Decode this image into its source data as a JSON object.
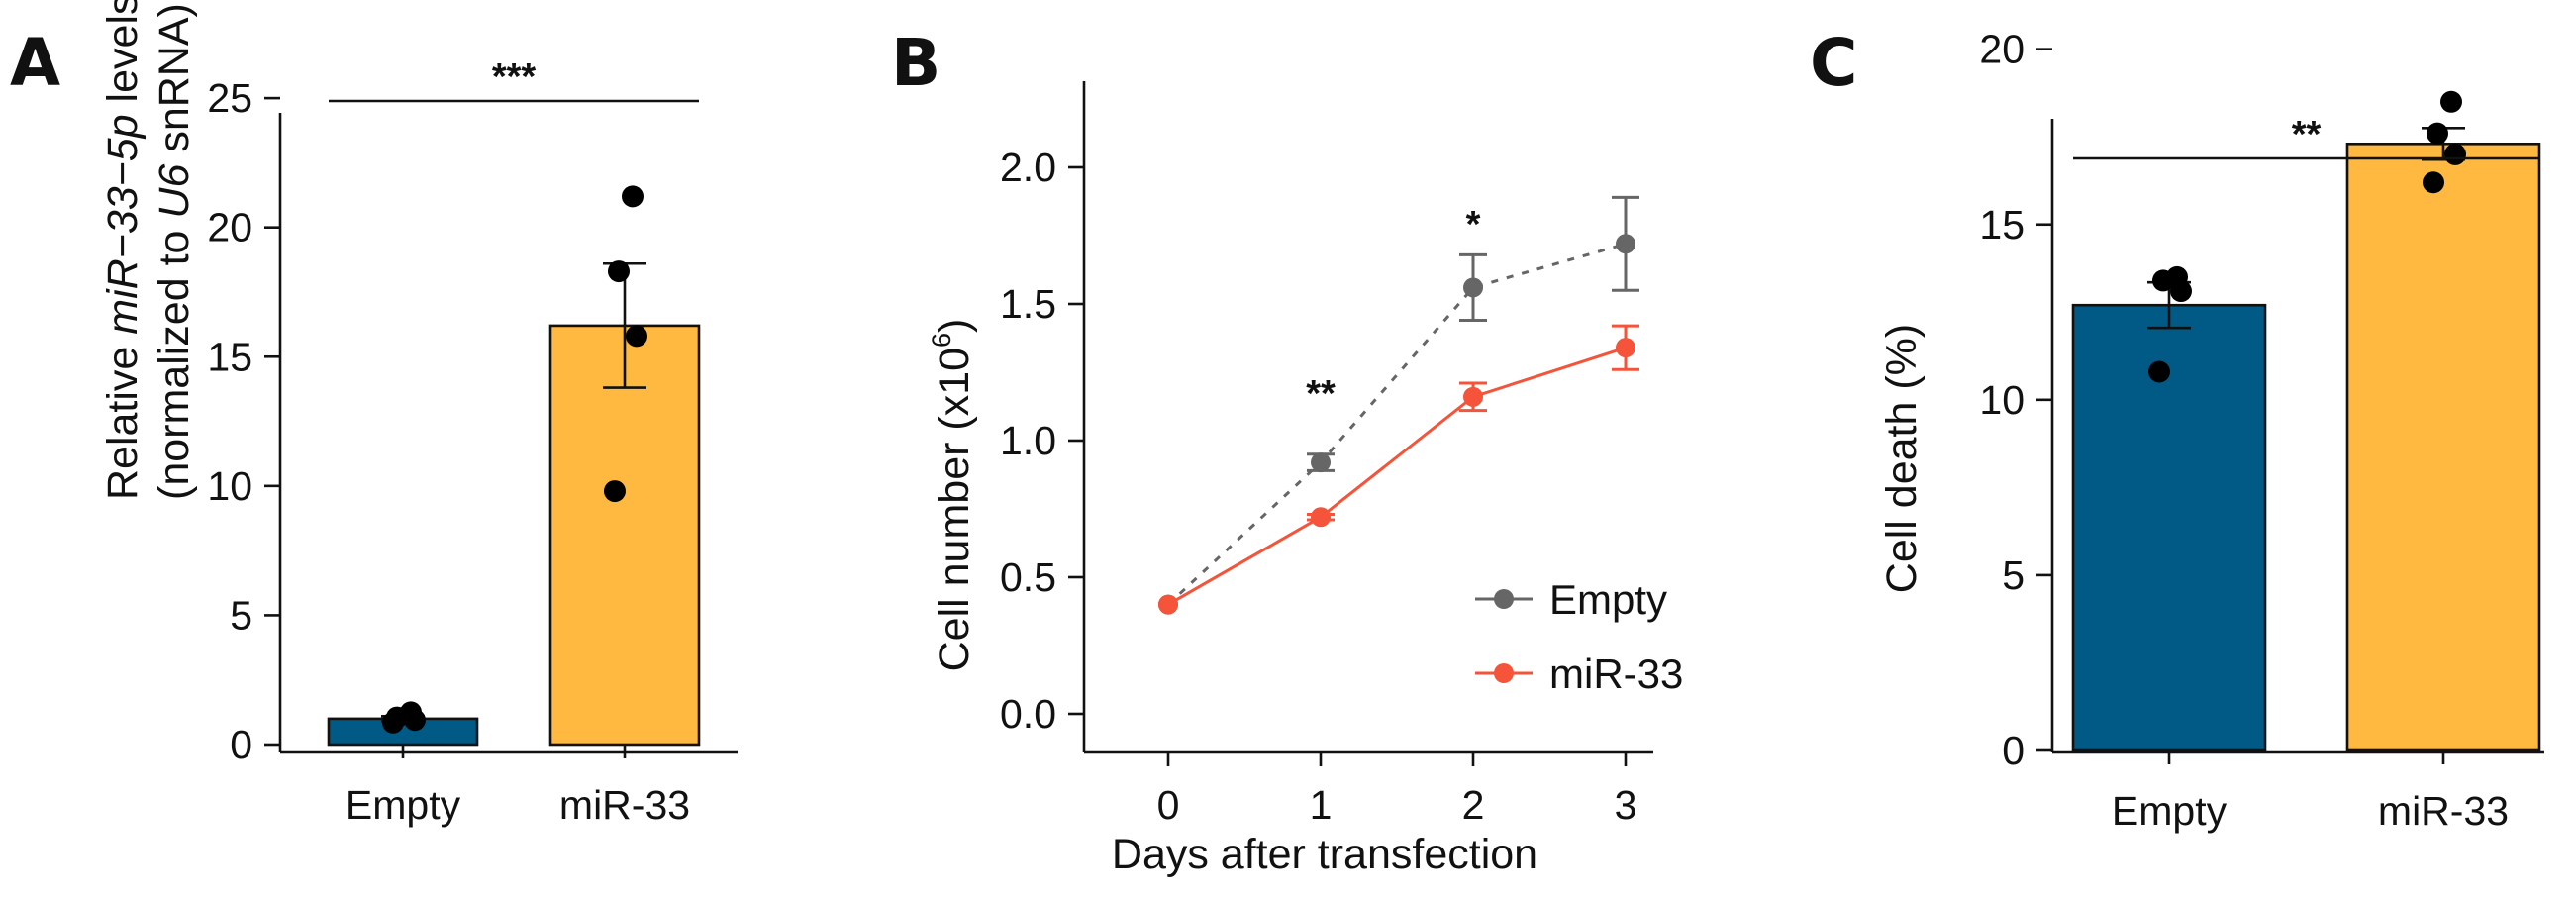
{
  "chart_data": [
    {
      "panel": "A",
      "type": "bar",
      "categories": [
        "Empty",
        "miR-33"
      ],
      "values": [
        1.0,
        16.2
      ],
      "error": [
        0.1,
        2.4
      ],
      "points": [
        [
          0.85,
          0.95,
          1.05,
          1.25
        ],
        [
          9.8,
          15.8,
          18.3,
          21.2
        ]
      ],
      "bar_colors": [
        "#005A85",
        "#FFB940"
      ],
      "ylabel_parts": [
        "Relative ",
        "miR−33−5p",
        " levels"
      ],
      "ylabel_line2_parts": [
        "(normalized to ",
        "U6",
        " snRNA)"
      ],
      "yticks": [
        "0",
        "5",
        "10",
        "15",
        "20",
        "25"
      ],
      "ylim": [
        0,
        26
      ],
      "significance": "***"
    },
    {
      "panel": "B",
      "type": "line",
      "x": [
        0,
        1,
        2,
        3
      ],
      "xticks": [
        "0",
        "1",
        "2",
        "3"
      ],
      "xlabel": "Days after transfection",
      "ylabel": "Cell number (x10",
      "ylabel_sup": "6",
      "ylabel_end": ")",
      "yticks": [
        "0.0",
        "0.5",
        "1.0",
        "1.5",
        "2.0"
      ],
      "ylim": [
        -0.05,
        2.3
      ],
      "xlim": [
        -0.5,
        3.4
      ],
      "series": [
        {
          "name": "Empty",
          "values": [
            0.4,
            0.92,
            1.56,
            1.72
          ],
          "error": [
            0.0,
            0.03,
            0.12,
            0.17
          ],
          "color": "#666666",
          "style": "dashed"
        },
        {
          "name": "miR-33",
          "values": [
            0.4,
            0.72,
            1.16,
            1.34
          ],
          "error": [
            0.0,
            0.01,
            0.05,
            0.08
          ],
          "color": "#F5533A",
          "style": "solid"
        }
      ],
      "significance": [
        {
          "x": 1,
          "label": "**",
          "y": 1.17
        },
        {
          "x": 2,
          "label": "*",
          "y": 1.79
        }
      ],
      "legend_position": "bottom-right"
    },
    {
      "panel": "C",
      "type": "bar",
      "categories": [
        "Empty",
        "miR-33"
      ],
      "values": [
        12.7,
        17.3
      ],
      "error": [
        0.65,
        0.45
      ],
      "points": [
        [
          10.8,
          13.1,
          13.4,
          13.5
        ],
        [
          16.2,
          17.0,
          17.6,
          18.5
        ]
      ],
      "bar_colors": [
        "#005A85",
        "#FFB940"
      ],
      "ylabel": "Cell death (%)",
      "yticks": [
        "0",
        "5",
        "10",
        "15",
        "20"
      ],
      "ylim": [
        0,
        20.4
      ],
      "significance": "**"
    }
  ]
}
